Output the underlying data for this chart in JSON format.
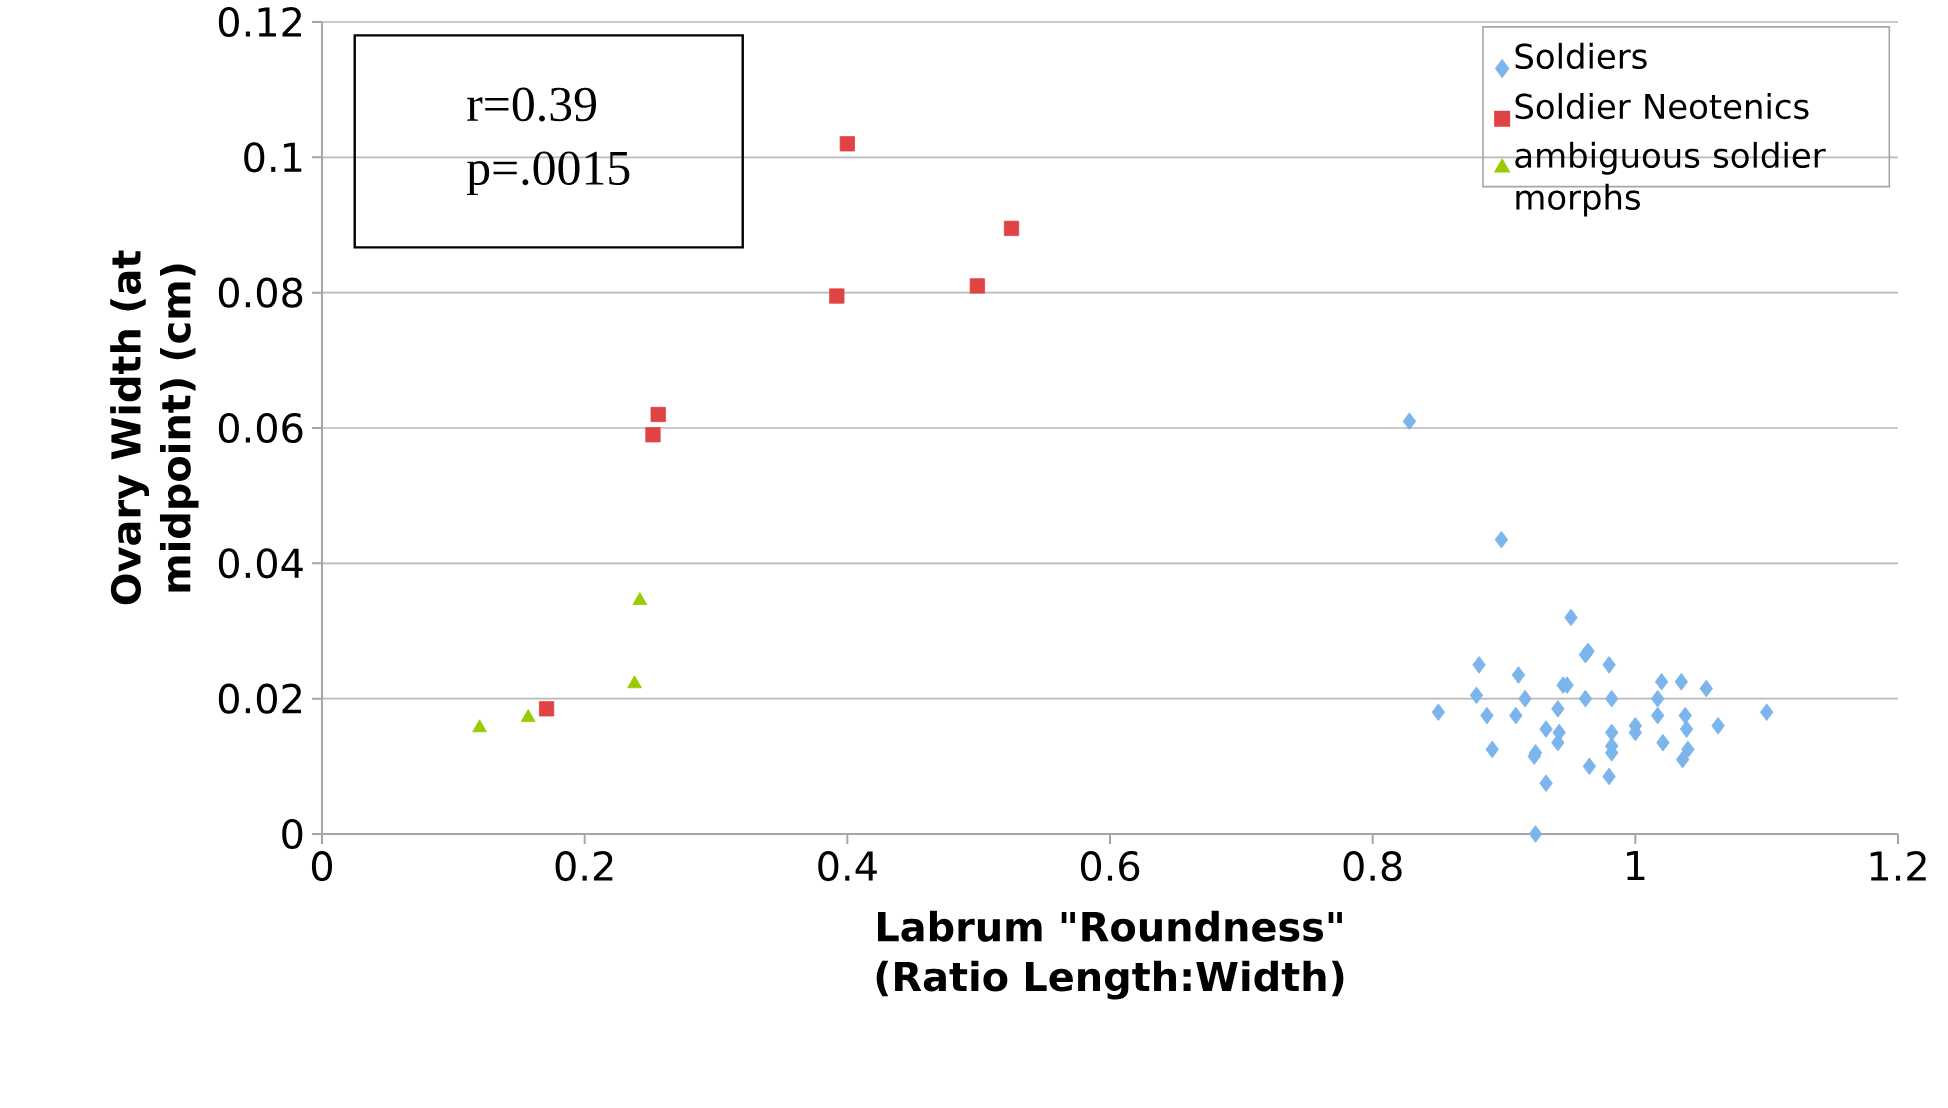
{
  "chart_data": {
    "type": "scatter",
    "xlabel": "Labrum \"Roundness\" (Ratio Length:Width)",
    "ylabel": "Ovary Width (at midpoint) (cm)",
    "xlim": [
      0,
      1.2
    ],
    "xticks": [
      0,
      0.2,
      0.4,
      0.6,
      0.8,
      1,
      1.2
    ],
    "ylim": [
      0,
      0.12
    ],
    "yticks": [
      0,
      0.02,
      0.04,
      0.06,
      0.08,
      0.1,
      0.12
    ],
    "grid": "y",
    "legend": "top right",
    "annotations": [
      "r=0.39",
      "p=.0015"
    ],
    "series": [
      {
        "name": "Soldiers",
        "color": "#7cb5ec",
        "marker": "diamond",
        "x": [
          0.828,
          0.898,
          0.951,
          0.964,
          0.962,
          0.881,
          0.911,
          0.98,
          1.02,
          1.035,
          1.054,
          0.945,
          0.948,
          0.879,
          0.916,
          0.962,
          0.982,
          1.017,
          0.85,
          0.887,
          0.909,
          0.941,
          1.017,
          1.038,
          1.1,
          0.932,
          0.942,
          0.982,
          1.0,
          1.039,
          1.063,
          0.941,
          0.982,
          1.0,
          1.021,
          1.04,
          0.891,
          0.924,
          0.923,
          0.982,
          1.036,
          0.965,
          0.98,
          0.932,
          0.924
        ],
        "values": [
          0.061,
          0.0435,
          0.032,
          0.027,
          0.0265,
          0.025,
          0.0235,
          0.025,
          0.0225,
          0.0225,
          0.0215,
          0.022,
          0.022,
          0.0205,
          0.02,
          0.02,
          0.02,
          0.02,
          0.018,
          0.0175,
          0.0175,
          0.0185,
          0.0175,
          0.0175,
          0.018,
          0.0155,
          0.015,
          0.015,
          0.016,
          0.0155,
          0.016,
          0.0135,
          0.013,
          0.015,
          0.0135,
          0.0125,
          0.0125,
          0.012,
          0.0115,
          0.012,
          0.011,
          0.01,
          0.0085,
          0.0075,
          0
        ]
      },
      {
        "name": "Soldier Neotenics",
        "color": "#e04343",
        "marker": "square",
        "x": [
          0.4,
          0.525,
          0.392,
          0.499,
          0.256,
          0.252,
          0.171
        ],
        "values": [
          0.102,
          0.0895,
          0.0795,
          0.081,
          0.062,
          0.059,
          0.0185
        ]
      },
      {
        "name": "ambiguous soldier morphs",
        "color": "#99cc00",
        "marker": "triangle",
        "x": [
          0.12,
          0.157,
          0.238,
          0.242
        ],
        "values": [
          0.0157,
          0.0172,
          0.0222,
          0.0345
        ]
      }
    ]
  }
}
